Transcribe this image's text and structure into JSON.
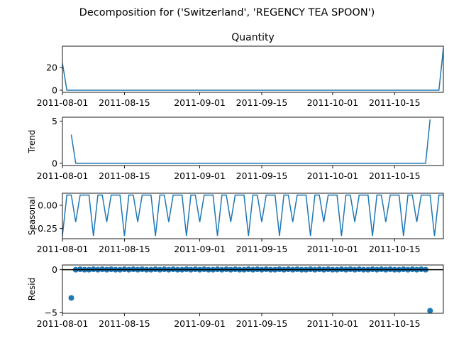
{
  "figure": {
    "title": "Decomposition for ('Switzerland', 'REGENCY TEA SPOON')",
    "line_color": "#1f77b4"
  },
  "chart_data": [
    {
      "type": "line",
      "title": "Quantity",
      "ylabel": "",
      "x_start": "2011-08-01",
      "x_end": "2011-10-26",
      "ylim": [
        -1.9,
        38.9
      ],
      "yticks": [
        "0",
        "20"
      ],
      "yticks_values": [
        0,
        20
      ],
      "xticks": [
        "2011-08-01",
        "2011-08-15",
        "2011-09-01",
        "2011-09-15",
        "2011-10-01",
        "2011-10-15"
      ],
      "series": [
        {
          "points": [
            [
              "2011-08-01",
              24
            ],
            [
              "2011-08-02",
              0
            ],
            [
              "2011-10-25",
              0
            ],
            [
              "2011-10-26",
              37
            ]
          ]
        }
      ]
    },
    {
      "type": "line",
      "title": "",
      "ylabel": "Trend",
      "x_start": "2011-08-01",
      "x_end": "2011-10-26",
      "ylim": [
        -0.26,
        5.46
      ],
      "yticks": [
        "0",
        "5"
      ],
      "yticks_values": [
        0,
        5
      ],
      "xticks": [
        "2011-08-01",
        "2011-08-15",
        "2011-09-01",
        "2011-09-15",
        "2011-10-01",
        "2011-10-15"
      ],
      "series": [
        {
          "points": [
            [
              "2011-08-03",
              3.4
            ],
            [
              "2011-08-04",
              0
            ],
            [
              "2011-10-22",
              0
            ],
            [
              "2011-10-23",
              5.2
            ]
          ]
        }
      ]
    },
    {
      "type": "line",
      "title": "",
      "ylabel": "Seasonal",
      "x_start": "2011-08-01",
      "x_end": "2011-10-26",
      "ylim": [
        -0.36,
        0.13
      ],
      "yticks": [
        "0.00",
        "−0.25"
      ],
      "yticks_values": [
        0,
        -0.25
      ],
      "xticks": [
        "2011-08-01",
        "2011-08-15",
        "2011-09-01",
        "2011-09-15",
        "2011-10-01",
        "2011-10-15"
      ],
      "period_days": 7,
      "cycle_start": "2011-08-01",
      "cycle_values": [
        -0.33,
        0.11,
        0.11,
        -0.18,
        0.11,
        0.11,
        0.11
      ]
    },
    {
      "type": "scatter",
      "title": "",
      "ylabel": "Resid",
      "x_start": "2011-08-01",
      "x_end": "2011-10-26",
      "ylim": [
        -5.1,
        0.55
      ],
      "yticks": [
        "0",
        "−5"
      ],
      "yticks_values": [
        0,
        -5
      ],
      "xticks": [
        "2011-08-01",
        "2011-08-15",
        "2011-09-01",
        "2011-09-15",
        "2011-10-01",
        "2011-10-15"
      ],
      "zero_line": true,
      "first_point": [
        "2011-08-03",
        -3.3
      ],
      "last_point": [
        "2011-10-23",
        -4.8
      ],
      "middle_start": "2011-08-04",
      "middle_end": "2011-10-22",
      "middle_pattern": [
        0,
        0.05,
        0,
        0,
        0.05,
        0,
        0.05
      ]
    }
  ]
}
